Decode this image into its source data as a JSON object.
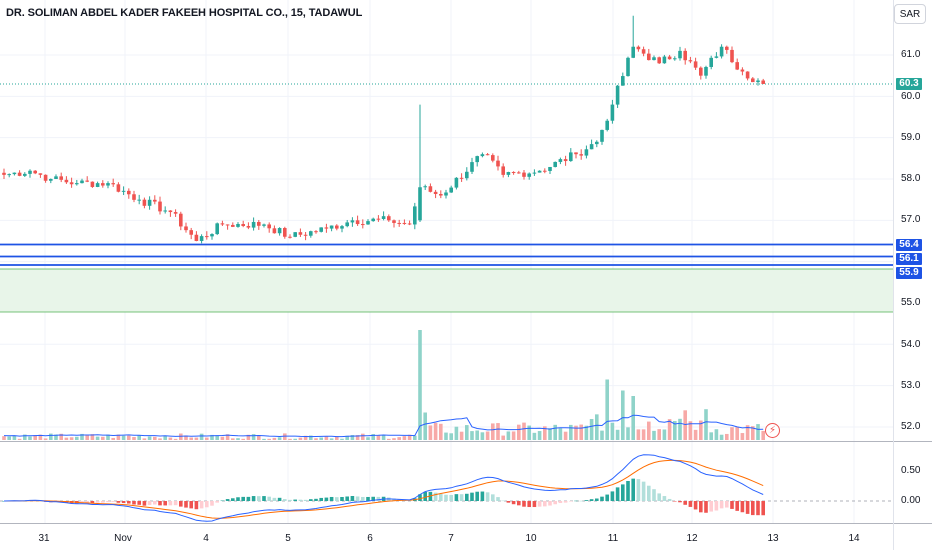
{
  "header": {
    "title": "DR. SOLIMAN ABDEL KADER FAKEEH HOSPITAL CO., 15, TADAWUL",
    "currency_label": "SAR"
  },
  "colors": {
    "up": "#26a69a",
    "down": "#ef5350",
    "up_volume": "#8fd3c9",
    "down_volume": "#f7a9a7",
    "level_line": "#1e53e5",
    "zone_fill": "#e8f5e9",
    "zone_border": "#4caf50",
    "ma_line": "#2962ff",
    "signal_line": "#ff6d00",
    "current_price_line": "#26a69a"
  },
  "price_axis": {
    "ticks": [
      "61.0",
      "60.0",
      "59.0",
      "58.0",
      "57.0",
      "56.0",
      "55.0",
      "54.0",
      "53.0",
      "52.0"
    ],
    "current_price": "60.3"
  },
  "levels": [
    {
      "price": 56.4,
      "label": "56.4"
    },
    {
      "price": 56.1,
      "label": "56.1"
    },
    {
      "price": 55.9,
      "label": "55.9"
    }
  ],
  "support_zone": {
    "top": 55.85,
    "bottom": 54.8
  },
  "time_axis": {
    "labels": [
      "31",
      "Nov",
      "4",
      "5",
      "6",
      "7",
      "10",
      "11",
      "12",
      "13",
      "14"
    ]
  },
  "macd_axis": {
    "ticks": [
      "0.50",
      "0.00"
    ]
  },
  "alert_icon": "lightning-alert-icon",
  "chart_data": {
    "type": "candlestick",
    "title": "DR. SOLIMAN ABDEL KADER FAKEEH HOSPITAL CO., 15, TADAWUL",
    "interval_minutes": 15,
    "x_labels": [
      "31",
      "Nov",
      "4",
      "5",
      "6",
      "7",
      "10",
      "11",
      "12",
      "13",
      "14"
    ],
    "ylim": [
      51.7,
      61.9
    ],
    "anchors": [
      {
        "bar": 0,
        "close": 58.1
      },
      {
        "bar": 5,
        "close": 58.2
      },
      {
        "bar": 9,
        "close": 58.0
      },
      {
        "bar": 14,
        "close": 57.9
      },
      {
        "bar": 20,
        "close": 57.9
      },
      {
        "bar": 26,
        "close": 57.5
      },
      {
        "bar": 32,
        "close": 57.2
      },
      {
        "bar": 37,
        "close": 56.5
      },
      {
        "bar": 42,
        "close": 56.9
      },
      {
        "bar": 50,
        "close": 56.9
      },
      {
        "bar": 55,
        "close": 56.6
      },
      {
        "bar": 62,
        "close": 56.8
      },
      {
        "bar": 67,
        "close": 57.0
      },
      {
        "bar": 74,
        "close": 57.0
      },
      {
        "bar": 78,
        "close": 56.9
      },
      {
        "bar": 80,
        "close": 57.8
      },
      {
        "bar": 84,
        "close": 57.6
      },
      {
        "bar": 92,
        "close": 58.6
      },
      {
        "bar": 96,
        "close": 58.1
      },
      {
        "bar": 103,
        "close": 58.2
      },
      {
        "bar": 110,
        "close": 58.6
      },
      {
        "bar": 114,
        "close": 58.9
      },
      {
        "bar": 117,
        "close": 59.8
      },
      {
        "bar": 121,
        "close": 61.2
      },
      {
        "bar": 126,
        "close": 60.8
      },
      {
        "bar": 130,
        "close": 61.1
      },
      {
        "bar": 134,
        "close": 60.5
      },
      {
        "bar": 138,
        "close": 61.2
      },
      {
        "bar": 142,
        "close": 60.6
      },
      {
        "bar": 146,
        "close": 60.3
      }
    ],
    "volume_spikes": [
      {
        "bar": 80,
        "level": 1.0
      },
      {
        "bar": 81,
        "level": 0.25
      },
      {
        "bar": 116,
        "level": 0.55
      },
      {
        "bar": 119,
        "level": 0.45
      },
      {
        "bar": 121,
        "level": 0.4
      },
      {
        "bar": 135,
        "level": 0.28
      }
    ]
  }
}
